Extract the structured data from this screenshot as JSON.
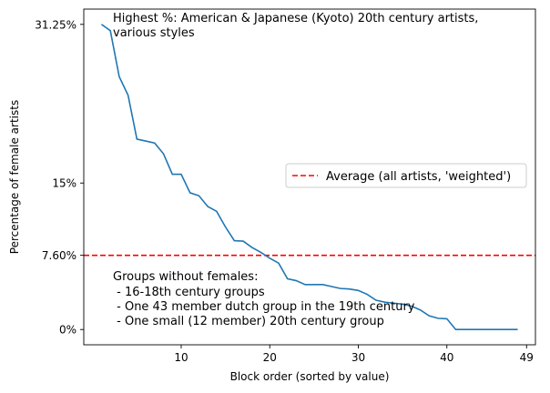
{
  "chart_data": {
    "type": "line",
    "xlabel": "Block order (sorted by value)",
    "ylabel": "Percentage of female artists",
    "xlim": [
      -1,
      50
    ],
    "ylim": [
      -1.5625,
      32.8125
    ],
    "x_ticks": [
      {
        "value": 10,
        "label": "10"
      },
      {
        "value": 20,
        "label": "20"
      },
      {
        "value": 30,
        "label": "30"
      },
      {
        "value": 40,
        "label": "40"
      },
      {
        "value": 49,
        "label": "49"
      }
    ],
    "y_ticks": [
      {
        "value": 0,
        "label": "0%"
      },
      {
        "value": 7.6,
        "label": "7.60%"
      },
      {
        "value": 15,
        "label": "15%"
      },
      {
        "value": 31.25,
        "label": "31.25%"
      }
    ],
    "series": [
      {
        "color": "#1f77b4",
        "x": [
          1,
          2,
          3,
          4,
          5,
          6,
          7,
          8,
          9,
          10,
          11,
          12,
          13,
          14,
          15,
          16,
          17,
          18,
          19,
          20,
          21,
          22,
          23,
          24,
          25,
          26,
          27,
          28,
          29,
          30,
          31,
          32,
          33,
          34,
          35,
          36,
          37,
          38,
          39,
          40,
          41,
          42,
          43,
          44,
          45,
          46,
          47,
          48
        ],
        "y": [
          31.25,
          30.6,
          25.9,
          24.0,
          19.5,
          19.3,
          19.1,
          18.0,
          15.9,
          15.9,
          14.0,
          13.7,
          12.6,
          12.1,
          10.5,
          9.1,
          9.05,
          8.4,
          7.9,
          7.3,
          6.8,
          5.2,
          5.0,
          4.6,
          4.6,
          4.6,
          4.4,
          4.2,
          4.15,
          4.0,
          3.6,
          3.0,
          2.8,
          2.7,
          2.6,
          2.4,
          2.0,
          1.4,
          1.15,
          1.1,
          0.0,
          0.0,
          0.0,
          0.0,
          0.0,
          0.0,
          0.0,
          0.0
        ]
      }
    ],
    "average": {
      "value": 7.6,
      "color": "#ff0000",
      "label": "Average (all artists, 'weighted')"
    },
    "legend_placement": "center-right",
    "grid": false,
    "annotations": {
      "top": [
        "Highest %: American & Japanese (Kyoto) 20th century artists,",
        "various styles"
      ],
      "bottom": [
        "Groups without females:",
        " - 16-18th century groups",
        " - One 43 member dutch group in the 19th century",
        " - One small (12 member) 20th century group"
      ]
    }
  }
}
